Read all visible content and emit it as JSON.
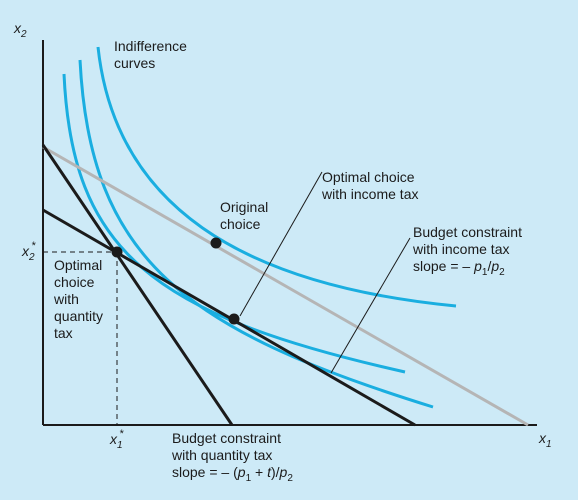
{
  "axes": {
    "x_label_base": "x",
    "x_label_sub": "1",
    "y_label_base": "x",
    "y_label_sub": "2"
  },
  "marks": {
    "x_star_base": "x",
    "x_star_sub": "1",
    "x_star_sup": "*",
    "y_star_base": "x",
    "y_star_sub": "2",
    "y_star_sup": "*"
  },
  "labels": {
    "indifference_curves": [
      "Indifference",
      "curves"
    ],
    "original_choice": [
      "Original",
      "choice"
    ],
    "optimal_income_tax": [
      "Optimal choice",
      "with income tax"
    ],
    "optimal_quantity_tax": [
      "Optimal",
      "choice",
      "with",
      "quantity",
      "tax"
    ],
    "budget_income_tax": {
      "line1": "Budget constraint",
      "line2": "with income tax",
      "slope_prefix": "slope = – ",
      "p": "p",
      "sub1": "1",
      "slash": "/",
      "sub2": "2"
    },
    "budget_quantity_tax": {
      "line1": "Budget constraint",
      "line2": "with quantity tax",
      "slope_prefix": "slope = – (",
      "p": "p",
      "sub1": "1",
      "plus": " + ",
      "t": "t",
      "close": ")/",
      "sub2": "2"
    }
  },
  "colors": {
    "background": "#cdeaf7",
    "indifference_curve": "#1aaee0",
    "budget_line": "#1b1b1b",
    "original_budget_line": "#b5b5b5"
  }
}
